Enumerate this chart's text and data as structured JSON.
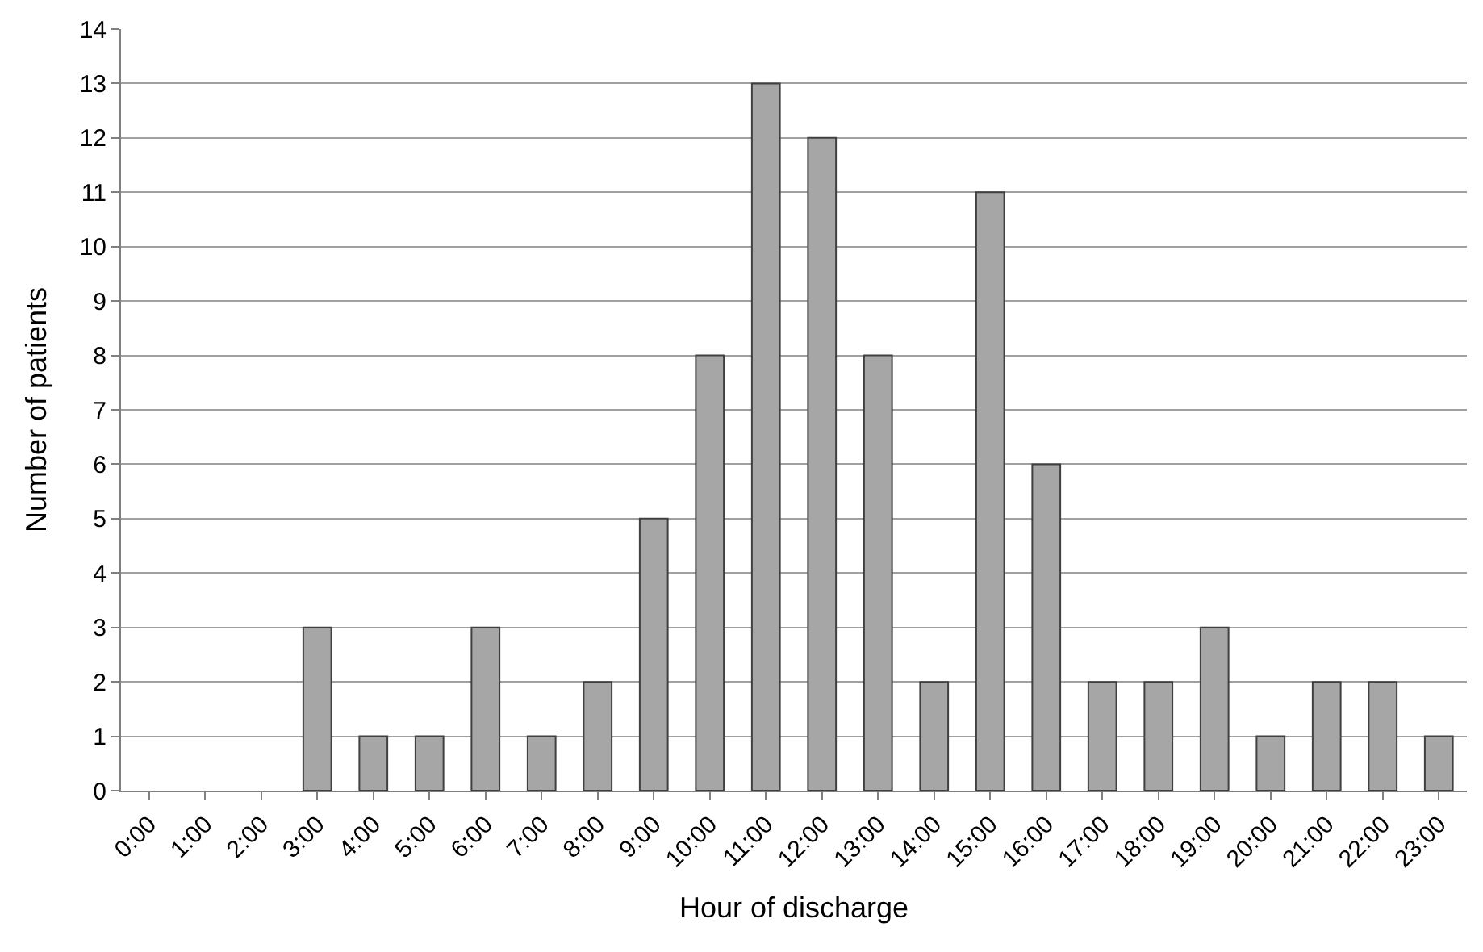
{
  "chart_data": {
    "type": "bar",
    "xlabel": "Hour of discharge",
    "ylabel": "Number of patients",
    "categories": [
      "0:00",
      "1:00",
      "2:00",
      "3:00",
      "4:00",
      "5:00",
      "6:00",
      "7:00",
      "8:00",
      "9:00",
      "10:00",
      "11:00",
      "12:00",
      "13:00",
      "14:00",
      "15:00",
      "16:00",
      "17:00",
      "18:00",
      "19:00",
      "20:00",
      "21:00",
      "22:00",
      "23:00"
    ],
    "values": [
      0,
      0,
      0,
      3,
      1,
      1,
      3,
      1,
      2,
      5,
      8,
      13,
      12,
      8,
      2,
      11,
      6,
      2,
      2,
      3,
      1,
      2,
      2,
      1
    ],
    "color": "#a6a6a6",
    "ylim": [
      0,
      14
    ],
    "yticks": [
      0,
      1,
      2,
      3,
      4,
      5,
      6,
      7,
      8,
      9,
      10,
      11,
      12,
      13,
      14
    ],
    "grid": "y",
    "legend": false
  }
}
